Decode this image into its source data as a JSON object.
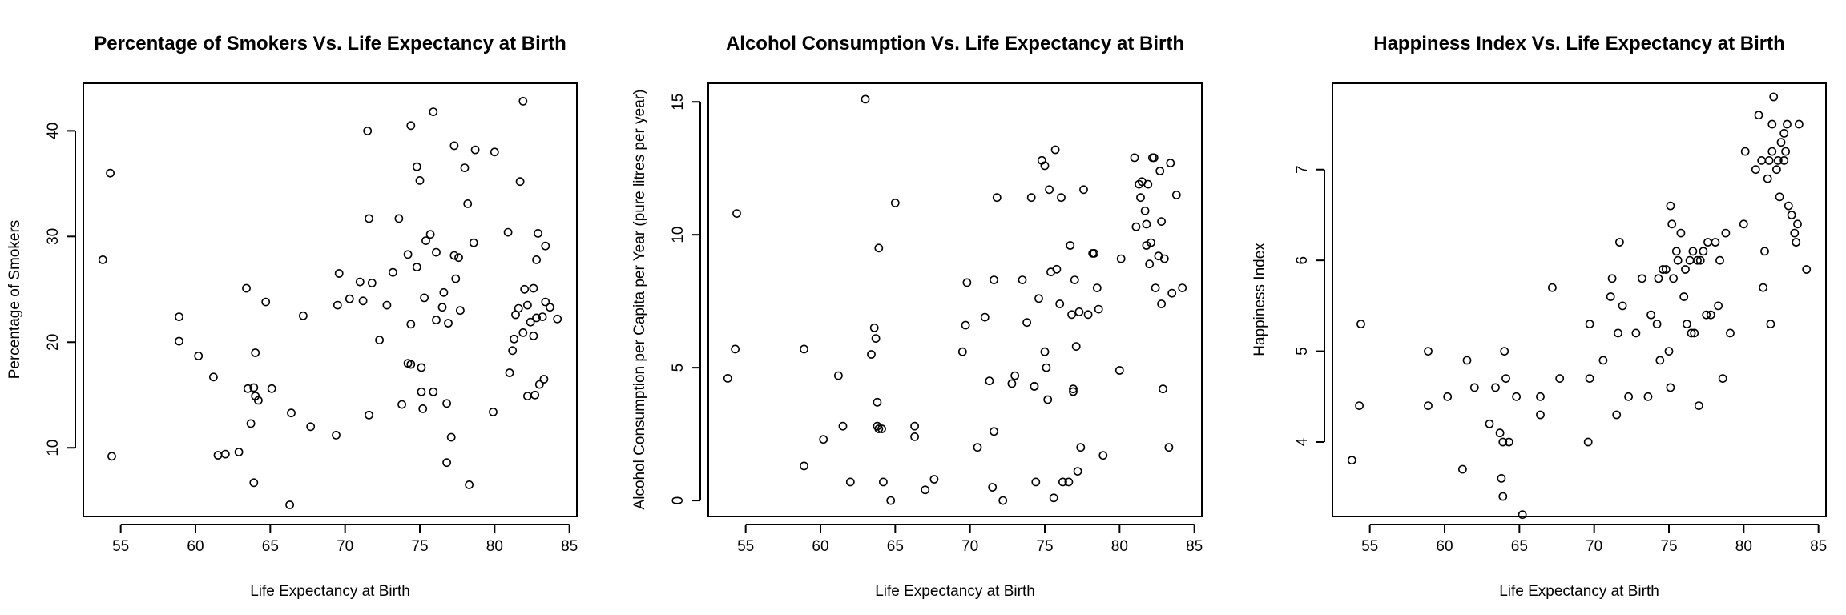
{
  "chart_data": [
    {
      "type": "scatter",
      "title": "Percentage of Smokers Vs. Life Expectancy at Birth",
      "xlabel": "Life Expectancy at Birth",
      "ylabel": "Percentage of Smokers",
      "xlim": [
        52.5,
        85.5
      ],
      "ylim": [
        3.5,
        44.5
      ],
      "xticks": [
        55,
        60,
        65,
        70,
        75,
        80,
        85
      ],
      "yticks": [
        10,
        20,
        30,
        40
      ],
      "grid": false,
      "points": [
        [
          53.8,
          27.8
        ],
        [
          54.3,
          36.0
        ],
        [
          54.4,
          9.2
        ],
        [
          58.9,
          22.4
        ],
        [
          58.9,
          20.1
        ],
        [
          60.2,
          18.7
        ],
        [
          61.2,
          16.7
        ],
        [
          61.5,
          9.3
        ],
        [
          62.0,
          9.4
        ],
        [
          62.9,
          9.6
        ],
        [
          63.4,
          25.1
        ],
        [
          63.5,
          15.6
        ],
        [
          63.7,
          12.3
        ],
        [
          63.9,
          15.7
        ],
        [
          63.9,
          6.7
        ],
        [
          64.0,
          14.9
        ],
        [
          64.0,
          19.0
        ],
        [
          64.2,
          14.5
        ],
        [
          64.7,
          23.8
        ],
        [
          65.1,
          15.6
        ],
        [
          66.3,
          4.6
        ],
        [
          66.4,
          13.3
        ],
        [
          67.2,
          22.5
        ],
        [
          67.7,
          12.0
        ],
        [
          69.4,
          11.2
        ],
        [
          69.5,
          23.5
        ],
        [
          69.6,
          26.5
        ],
        [
          70.3,
          24.1
        ],
        [
          71.0,
          25.7
        ],
        [
          71.2,
          23.9
        ],
        [
          71.5,
          40.0
        ],
        [
          71.6,
          13.1
        ],
        [
          71.6,
          31.7
        ],
        [
          71.8,
          25.6
        ],
        [
          72.3,
          20.2
        ],
        [
          72.8,
          23.5
        ],
        [
          73.2,
          26.6
        ],
        [
          73.6,
          31.7
        ],
        [
          73.8,
          14.1
        ],
        [
          74.2,
          18.0
        ],
        [
          74.2,
          28.3
        ],
        [
          74.4,
          40.5
        ],
        [
          74.4,
          17.9
        ],
        [
          74.4,
          21.7
        ],
        [
          74.8,
          36.6
        ],
        [
          74.8,
          27.1
        ],
        [
          75.0,
          35.3
        ],
        [
          75.1,
          17.6
        ],
        [
          75.1,
          15.3
        ],
        [
          75.2,
          13.7
        ],
        [
          75.3,
          24.2
        ],
        [
          75.4,
          29.6
        ],
        [
          75.7,
          30.2
        ],
        [
          75.9,
          15.3
        ],
        [
          75.9,
          41.8
        ],
        [
          76.1,
          22.1
        ],
        [
          76.1,
          28.5
        ],
        [
          76.5,
          23.3
        ],
        [
          76.6,
          24.7
        ],
        [
          76.8,
          8.6
        ],
        [
          76.8,
          14.2
        ],
        [
          76.9,
          21.8
        ],
        [
          77.1,
          11.0
        ],
        [
          77.3,
          28.2
        ],
        [
          77.3,
          38.6
        ],
        [
          77.4,
          26.0
        ],
        [
          77.6,
          28.0
        ],
        [
          77.7,
          23.0
        ],
        [
          78.0,
          36.5
        ],
        [
          78.2,
          33.1
        ],
        [
          78.3,
          6.5
        ],
        [
          78.6,
          29.4
        ],
        [
          78.7,
          38.2
        ],
        [
          79.9,
          13.4
        ],
        [
          80.0,
          38.0
        ],
        [
          80.9,
          30.4
        ],
        [
          81.0,
          17.1
        ],
        [
          81.2,
          19.2
        ],
        [
          81.3,
          20.3
        ],
        [
          81.4,
          22.6
        ],
        [
          81.6,
          23.2
        ],
        [
          81.7,
          35.2
        ],
        [
          81.9,
          42.8
        ],
        [
          81.9,
          20.9
        ],
        [
          82.0,
          25.0
        ],
        [
          82.2,
          14.9
        ],
        [
          82.4,
          21.9
        ],
        [
          82.6,
          20.6
        ],
        [
          82.6,
          25.1
        ],
        [
          82.7,
          15.0
        ],
        [
          82.8,
          27.8
        ],
        [
          82.8,
          22.3
        ],
        [
          82.9,
          30.3
        ],
        [
          83.0,
          16.0
        ],
        [
          83.3,
          16.5
        ],
        [
          83.4,
          23.8
        ],
        [
          83.4,
          29.1
        ],
        [
          83.7,
          23.3
        ],
        [
          84.2,
          22.2
        ],
        [
          83.2,
          22.4
        ],
        [
          82.2,
          23.5
        ]
      ]
    },
    {
      "type": "scatter",
      "title": "Alcohol Consumption Vs. Life Expectancy at Birth",
      "xlabel": "Life Expectancy at Birth",
      "ylabel": "Alcohol Consumption per Capita per Year (pure litres per year)",
      "xlim": [
        52.5,
        85.5
      ],
      "ylim": [
        -0.6,
        15.7
      ],
      "xticks": [
        55,
        60,
        65,
        70,
        75,
        80,
        85
      ],
      "yticks": [
        0,
        5,
        10,
        15
      ],
      "grid": false,
      "points": [
        [
          53.8,
          4.6
        ],
        [
          54.3,
          5.7
        ],
        [
          54.4,
          10.8
        ],
        [
          58.9,
          5.7
        ],
        [
          58.9,
          1.3
        ],
        [
          60.2,
          2.3
        ],
        [
          61.2,
          4.7
        ],
        [
          61.5,
          2.8
        ],
        [
          62.0,
          0.7
        ],
        [
          63.0,
          15.1
        ],
        [
          63.4,
          5.5
        ],
        [
          63.6,
          6.5
        ],
        [
          63.7,
          6.1
        ],
        [
          63.8,
          3.7
        ],
        [
          63.8,
          2.8
        ],
        [
          63.9,
          2.7
        ],
        [
          63.9,
          9.5
        ],
        [
          64.1,
          2.7
        ],
        [
          64.2,
          0.7
        ],
        [
          64.7,
          0.0
        ],
        [
          65.0,
          11.2
        ],
        [
          66.3,
          2.8
        ],
        [
          66.3,
          2.4
        ],
        [
          67.0,
          0.4
        ],
        [
          67.6,
          0.8
        ],
        [
          69.5,
          5.6
        ],
        [
          69.7,
          6.6
        ],
        [
          69.8,
          8.2
        ],
        [
          70.5,
          2.0
        ],
        [
          71.0,
          6.9
        ],
        [
          71.3,
          4.5
        ],
        [
          71.5,
          0.5
        ],
        [
          71.6,
          2.6
        ],
        [
          71.6,
          8.3
        ],
        [
          71.8,
          11.4
        ],
        [
          72.2,
          0.0
        ],
        [
          72.8,
          4.4
        ],
        [
          73.0,
          4.7
        ],
        [
          73.5,
          8.3
        ],
        [
          73.8,
          6.7
        ],
        [
          74.1,
          11.4
        ],
        [
          74.3,
          4.3
        ],
        [
          74.3,
          4.3
        ],
        [
          74.4,
          0.7
        ],
        [
          74.6,
          7.6
        ],
        [
          74.8,
          12.8
        ],
        [
          75.0,
          12.6
        ],
        [
          75.0,
          5.6
        ],
        [
          75.1,
          5.0
        ],
        [
          75.2,
          3.8
        ],
        [
          75.3,
          11.7
        ],
        [
          75.4,
          8.6
        ],
        [
          75.6,
          0.1
        ],
        [
          75.7,
          13.2
        ],
        [
          75.8,
          8.7
        ],
        [
          76.0,
          7.4
        ],
        [
          76.1,
          11.4
        ],
        [
          76.2,
          0.7
        ],
        [
          76.6,
          0.7
        ],
        [
          76.7,
          9.6
        ],
        [
          76.8,
          7.0
        ],
        [
          76.9,
          4.2
        ],
        [
          76.9,
          4.1
        ],
        [
          77.0,
          8.3
        ],
        [
          77.1,
          5.8
        ],
        [
          77.2,
          1.1
        ],
        [
          77.3,
          7.1
        ],
        [
          77.4,
          2.0
        ],
        [
          77.6,
          11.7
        ],
        [
          77.9,
          7.0
        ],
        [
          78.2,
          9.3
        ],
        [
          78.3,
          9.3
        ],
        [
          78.5,
          8.0
        ],
        [
          78.6,
          7.2
        ],
        [
          78.9,
          1.7
        ],
        [
          80.0,
          4.9
        ],
        [
          80.1,
          9.1
        ],
        [
          81.0,
          12.9
        ],
        [
          81.1,
          10.3
        ],
        [
          81.3,
          11.9
        ],
        [
          81.4,
          11.4
        ],
        [
          81.5,
          12.0
        ],
        [
          81.7,
          10.9
        ],
        [
          81.8,
          10.4
        ],
        [
          81.9,
          11.9
        ],
        [
          82.0,
          8.9
        ],
        [
          82.1,
          9.7
        ],
        [
          82.2,
          12.9
        ],
        [
          82.3,
          12.9
        ],
        [
          82.4,
          8.0
        ],
        [
          82.6,
          9.2
        ],
        [
          82.7,
          12.4
        ],
        [
          82.8,
          7.4
        ],
        [
          82.8,
          10.5
        ],
        [
          82.9,
          4.2
        ],
        [
          83.0,
          9.1
        ],
        [
          83.3,
          2.0
        ],
        [
          83.4,
          12.7
        ],
        [
          83.5,
          7.8
        ],
        [
          83.8,
          11.5
        ],
        [
          84.2,
          8.0
        ],
        [
          81.8,
          9.6
        ]
      ]
    },
    {
      "type": "scatter",
      "title": "Happiness Index Vs. Life Expectancy at Birth",
      "xlabel": "Life Expectancy at Birth",
      "ylabel": "Happiness Index",
      "xlim": [
        52.5,
        85.5
      ],
      "ylim": [
        3.18,
        7.95
      ],
      "xticks": [
        55,
        60,
        65,
        70,
        75,
        80,
        85
      ],
      "yticks": [
        4,
        5,
        6,
        7
      ],
      "grid": false,
      "points": [
        [
          53.8,
          3.8
        ],
        [
          54.3,
          4.4
        ],
        [
          54.4,
          5.3
        ],
        [
          58.9,
          5.0
        ],
        [
          58.9,
          4.4
        ],
        [
          60.2,
          4.5
        ],
        [
          61.2,
          3.7
        ],
        [
          61.5,
          4.9
        ],
        [
          62.0,
          4.6
        ],
        [
          63.0,
          4.2
        ],
        [
          63.4,
          4.6
        ],
        [
          63.7,
          4.1
        ],
        [
          63.8,
          3.6
        ],
        [
          63.9,
          3.4
        ],
        [
          63.9,
          4.0
        ],
        [
          64.0,
          5.0
        ],
        [
          64.1,
          4.7
        ],
        [
          64.3,
          4.0
        ],
        [
          64.8,
          4.5
        ],
        [
          65.2,
          3.2
        ],
        [
          66.4,
          4.3
        ],
        [
          66.4,
          4.5
        ],
        [
          67.2,
          5.7
        ],
        [
          67.7,
          4.7
        ],
        [
          69.6,
          4.0
        ],
        [
          69.7,
          5.3
        ],
        [
          69.7,
          4.7
        ],
        [
          70.6,
          4.9
        ],
        [
          71.1,
          5.6
        ],
        [
          71.2,
          5.8
        ],
        [
          71.5,
          4.3
        ],
        [
          71.6,
          5.2
        ],
        [
          71.7,
          6.2
        ],
        [
          71.9,
          5.5
        ],
        [
          72.3,
          4.5
        ],
        [
          72.8,
          5.2
        ],
        [
          73.2,
          5.8
        ],
        [
          73.6,
          4.5
        ],
        [
          73.8,
          5.4
        ],
        [
          74.2,
          5.3
        ],
        [
          74.3,
          5.8
        ],
        [
          74.4,
          4.9
        ],
        [
          74.6,
          5.9
        ],
        [
          74.8,
          5.9
        ],
        [
          75.0,
          5.0
        ],
        [
          75.1,
          4.6
        ],
        [
          75.1,
          6.6
        ],
        [
          75.2,
          6.4
        ],
        [
          75.3,
          5.8
        ],
        [
          75.5,
          6.1
        ],
        [
          75.6,
          6.0
        ],
        [
          75.8,
          6.3
        ],
        [
          76.0,
          5.6
        ],
        [
          76.1,
          5.9
        ],
        [
          76.2,
          5.3
        ],
        [
          76.4,
          6.0
        ],
        [
          76.5,
          5.2
        ],
        [
          76.6,
          6.1
        ],
        [
          76.7,
          5.2
        ],
        [
          76.9,
          6.0
        ],
        [
          77.0,
          4.4
        ],
        [
          77.1,
          6.0
        ],
        [
          77.3,
          6.1
        ],
        [
          77.5,
          5.4
        ],
        [
          77.6,
          6.2
        ],
        [
          77.8,
          5.4
        ],
        [
          78.1,
          6.2
        ],
        [
          78.3,
          5.5
        ],
        [
          78.4,
          6.0
        ],
        [
          78.6,
          4.7
        ],
        [
          78.8,
          6.3
        ],
        [
          79.1,
          5.2
        ],
        [
          80.0,
          6.4
        ],
        [
          80.1,
          7.2
        ],
        [
          80.8,
          7.0
        ],
        [
          81.0,
          7.6
        ],
        [
          81.2,
          7.1
        ],
        [
          81.3,
          5.7
        ],
        [
          81.4,
          6.1
        ],
        [
          81.6,
          6.9
        ],
        [
          81.7,
          7.1
        ],
        [
          81.8,
          5.3
        ],
        [
          81.9,
          7.5
        ],
        [
          82.0,
          7.8
        ],
        [
          82.2,
          7.0
        ],
        [
          82.3,
          7.1
        ],
        [
          82.4,
          6.7
        ],
        [
          82.5,
          7.3
        ],
        [
          82.7,
          7.4
        ],
        [
          82.8,
          7.2
        ],
        [
          82.9,
          7.5
        ],
        [
          83.0,
          6.6
        ],
        [
          83.2,
          6.5
        ],
        [
          83.4,
          6.3
        ],
        [
          83.5,
          6.2
        ],
        [
          83.6,
          6.4
        ],
        [
          83.7,
          7.5
        ],
        [
          84.2,
          5.9
        ],
        [
          82.7,
          7.1
        ],
        [
          81.9,
          7.2
        ]
      ]
    }
  ]
}
